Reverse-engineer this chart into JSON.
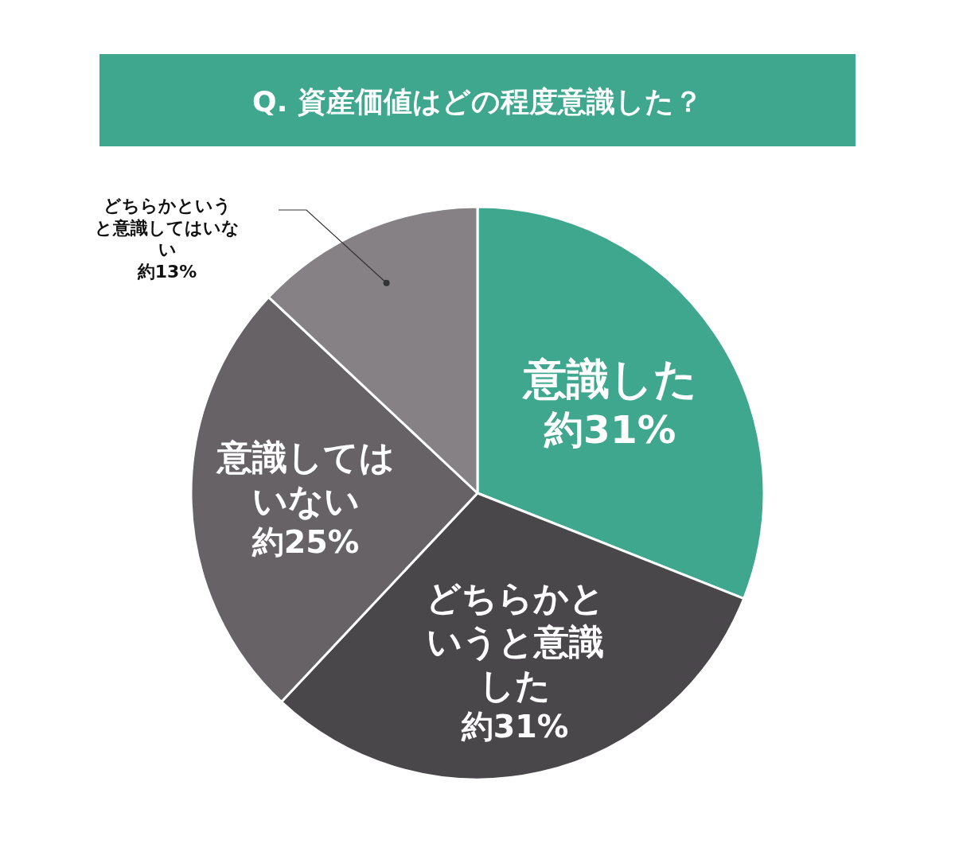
{
  "chart_data": {
    "type": "pie",
    "title": "Q. 資産価値はどの程度意識した？",
    "categories": [
      "意識した",
      "どちらかというと意識した",
      "意識してはいない",
      "どちらかというと意識してはいない"
    ],
    "values": [
      31,
      31,
      25,
      13
    ],
    "value_labels": [
      "約31%",
      "約31%",
      "約25%",
      "約13%"
    ],
    "colors": [
      "#3fa78e",
      "#4a474a",
      "#666266",
      "#858184"
    ],
    "legend": false
  }
}
